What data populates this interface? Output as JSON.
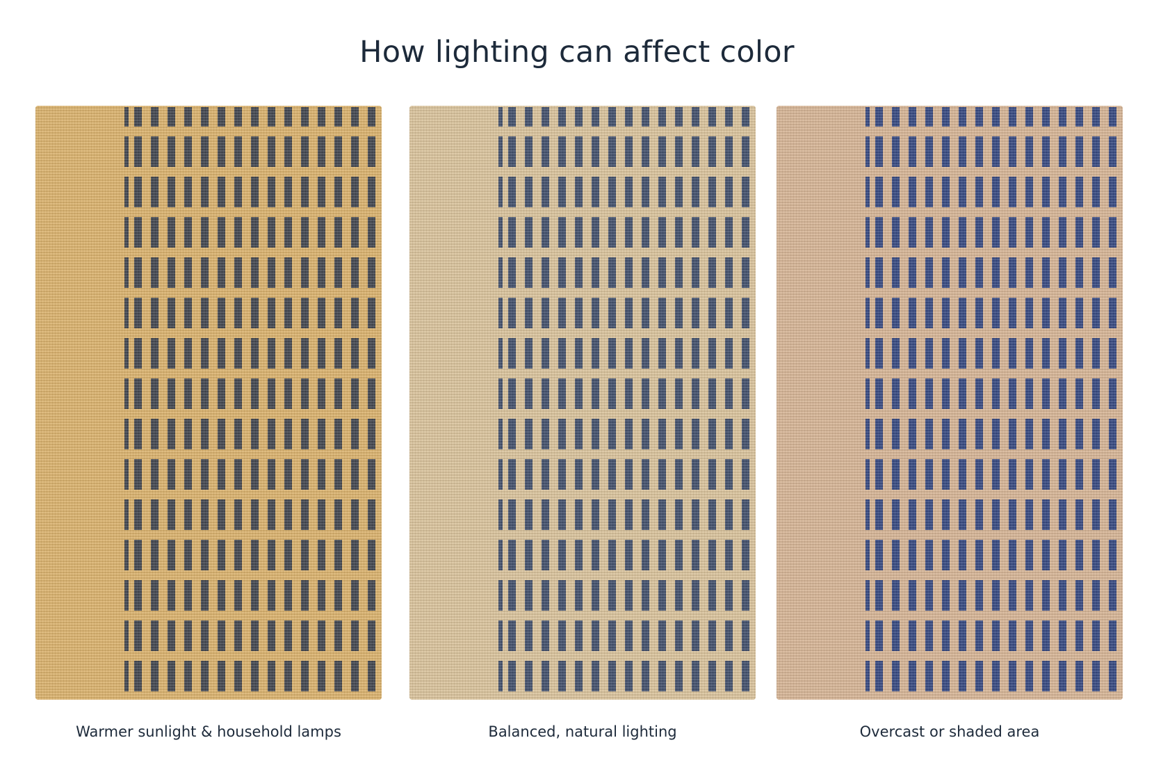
{
  "title": "How lighting can affect color",
  "panels": [
    {
      "caption": "Warmer sunlight & household lamps",
      "base_color": "#d9b06a",
      "stripe_color": "#3f434c"
    },
    {
      "caption": "Balanced, natural lighting",
      "base_color": "#d8c199",
      "stripe_color": "#3f4d69"
    },
    {
      "caption": "Overcast or shaded area",
      "base_color": "#d5b393",
      "stripe_color": "#33467f"
    }
  ]
}
